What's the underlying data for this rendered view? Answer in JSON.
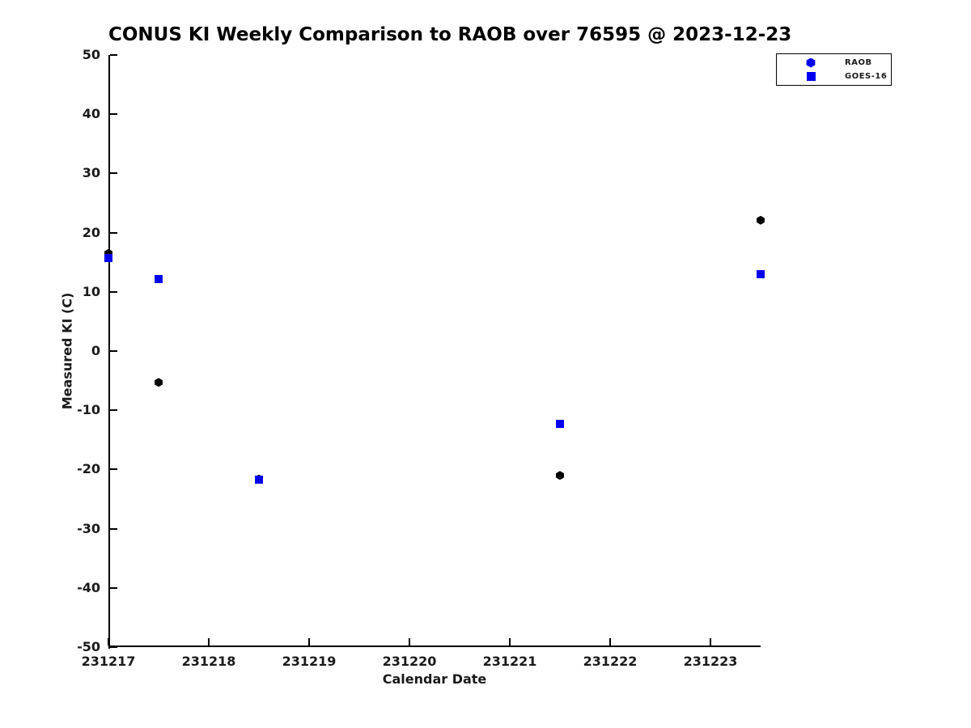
{
  "chart_data": {
    "type": "scatter",
    "title": "CONUS KI Weekly Comparison to RAOB over 76595 @ 2023-12-23",
    "xlabel": "Calendar Date",
    "ylabel": "Measured KI (C)",
    "xlim": [
      231217,
      231223.5
    ],
    "ylim": [
      -50,
      50
    ],
    "xticks": [
      "231217",
      "231218",
      "231219",
      "231220",
      "231221",
      "231222",
      "231223"
    ],
    "yticks": [
      "50",
      "40",
      "30",
      "20",
      "10",
      "0",
      "-10",
      "-20",
      "-30",
      "-40",
      "-50"
    ],
    "grid": false,
    "axis_color": "#000000",
    "legend": {
      "position": "top-right",
      "entries": [
        {
          "label": "RAOB",
          "marker": "hexagon",
          "color": "#0000ee"
        },
        {
          "label": "GOES-16",
          "marker": "square",
          "color": "#0000ee"
        }
      ]
    },
    "series": [
      {
        "name": "RAOB",
        "marker": "hexagon",
        "color": "#000000",
        "points": [
          [
            231217.0,
            16.5
          ],
          [
            231217.5,
            -5.3
          ],
          [
            231218.5,
            -21.6
          ],
          [
            231221.5,
            -21.0
          ],
          [
            231223.5,
            22.1
          ]
        ]
      },
      {
        "name": "GOES-16",
        "marker": "square",
        "color": "#0000ee",
        "points": [
          [
            231217.0,
            15.7
          ],
          [
            231217.5,
            12.2
          ],
          [
            231218.5,
            -21.7
          ],
          [
            231221.5,
            -12.3
          ],
          [
            231223.5,
            13.0
          ]
        ]
      }
    ]
  }
}
